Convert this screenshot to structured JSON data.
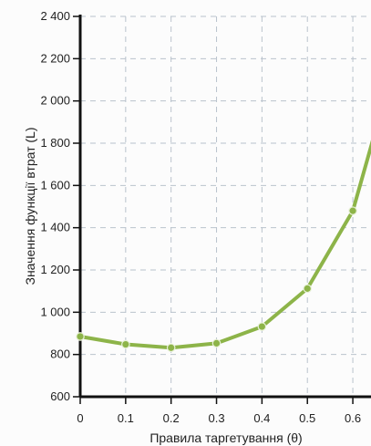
{
  "chart_data": {
    "type": "line",
    "title": "",
    "xlabel": "Правила таргетування (θ)",
    "ylabel": "Значення функції втрат (L)",
    "x": [
      0,
      0.1,
      0.2,
      0.3,
      0.4,
      0.5,
      0.6,
      0.65
    ],
    "x_tick_labels": [
      "0",
      "0.1",
      "0.2",
      "0.3",
      "0.4",
      "0.5",
      "0.6"
    ],
    "y_tick_labels": [
      "600",
      "800",
      "1 000",
      "1 200",
      "1 400",
      "1 600",
      "1 800",
      "2 000",
      "2 200",
      "2 400"
    ],
    "xlim": [
      0,
      0.64
    ],
    "ylim": [
      600,
      2400
    ],
    "grid": true,
    "series": [
      {
        "values": [
          885,
          848,
          832,
          853,
          932,
          1112,
          1480,
          1860
        ],
        "markers_shown": [
          true,
          true,
          true,
          true,
          true,
          true,
          true,
          false
        ],
        "color": "#8db449"
      }
    ],
    "colors": {
      "line": "#8db449",
      "marker": "#8db449",
      "marker_center": "#e9f1da",
      "axis": "#111111",
      "grid": "#b9c2cc"
    }
  }
}
